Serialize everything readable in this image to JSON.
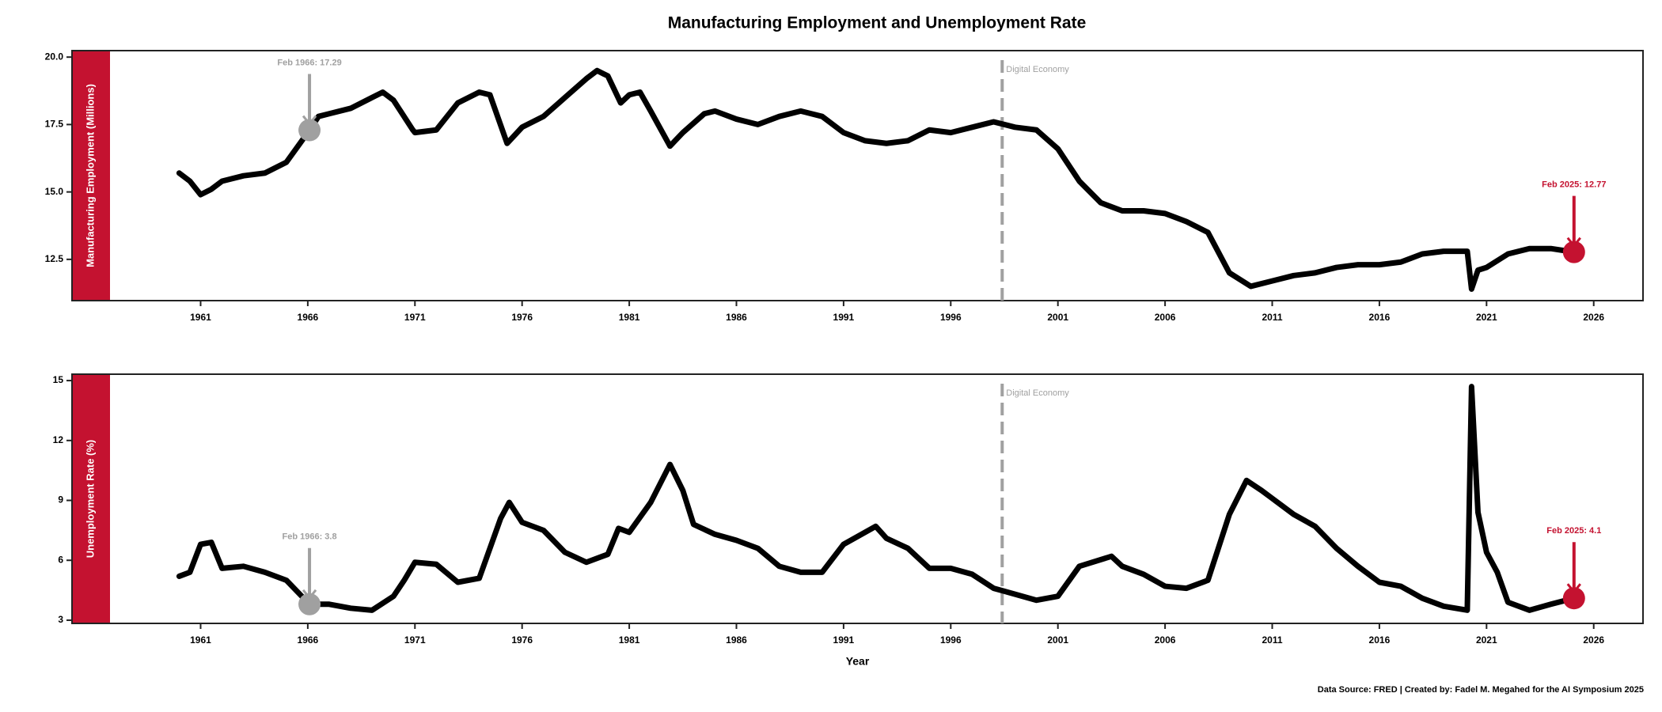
{
  "title": "Manufacturing Employment and Unemployment Rate",
  "source": "Data Source: FRED | Created by: Fadel M. Megahed for the AI Symposium 2025",
  "chart_data": [
    {
      "type": "line",
      "ylabel": "Manufacturing Employment (Millions)",
      "band_color": "#c41230",
      "xlim": [
        1955.0,
        2028.3
      ],
      "xticks": [
        1961,
        1966,
        1971,
        1976,
        1981,
        1986,
        1991,
        1996,
        2001,
        2006,
        2011,
        2016,
        2021,
        2026
      ],
      "ylim": [
        10.97,
        20.24
      ],
      "yticks": [
        12.5,
        {
          "value": 15,
          "label": "15.0"
        },
        17.5,
        {
          "value": 20,
          "label": "20.0"
        }
      ],
      "vline": {
        "x": 1998.4,
        "label": "Digital Economy",
        "color": "#a0a0a0"
      },
      "series": [
        {
          "name": "Manufacturing Employment",
          "color": "#000000",
          "x": [
            1960.0,
            1960.5,
            1961.0,
            1961.5,
            1962,
            1963,
            1964,
            1965,
            1966.08,
            1966.5,
            1967,
            1968,
            1969,
            1969.5,
            1970,
            1970.9,
            1971,
            1972,
            1973,
            1974,
            1974.5,
            1975.3,
            1976,
            1977,
            1978,
            1979,
            1979.5,
            1980,
            1980.6,
            1981,
            1981.5,
            1982,
            1982.9,
            1983.5,
            1984.5,
            1985,
            1986,
            1987,
            1988,
            1989,
            1990,
            1991,
            1992,
            1993,
            1994,
            1995,
            1996,
            1997,
            1998,
            1999,
            2000,
            2001,
            2002,
            2003,
            2004,
            2005,
            2006,
            2007,
            2008,
            2009,
            2010,
            2011,
            2012,
            2013,
            2014,
            2015,
            2016,
            2017,
            2018,
            2019,
            2020.1,
            2020.3,
            2020.6,
            2021,
            2022,
            2023,
            2024,
            2025.08
          ],
          "values": [
            15.7,
            15.4,
            14.9,
            15.1,
            15.4,
            15.6,
            15.7,
            16.1,
            17.29,
            17.8,
            17.9,
            18.1,
            18.5,
            18.7,
            18.4,
            17.3,
            17.2,
            17.3,
            18.3,
            18.7,
            18.6,
            16.8,
            17.4,
            17.8,
            18.5,
            19.2,
            19.5,
            19.3,
            18.3,
            18.6,
            18.7,
            18.0,
            16.7,
            17.2,
            17.9,
            18.0,
            17.7,
            17.5,
            17.8,
            18.0,
            17.8,
            17.2,
            16.9,
            16.8,
            16.9,
            17.3,
            17.2,
            17.4,
            17.6,
            17.4,
            17.3,
            16.6,
            15.4,
            14.6,
            14.3,
            14.3,
            14.2,
            13.9,
            13.5,
            12.0,
            11.5,
            11.7,
            11.9,
            12.0,
            12.2,
            12.3,
            12.3,
            12.4,
            12.7,
            12.8,
            12.8,
            11.4,
            12.1,
            12.2,
            12.7,
            12.9,
            12.9,
            12.77
          ]
        }
      ],
      "annotations": [
        {
          "x": 1966.08,
          "y": 17.29,
          "label": "Feb 1966: 17.29",
          "color": "#a0a0a0"
        },
        {
          "x": 2025.08,
          "y": 12.77,
          "label": "Feb 2025: 12.77",
          "color": "#c41230"
        }
      ]
    },
    {
      "type": "line",
      "ylabel": "Unemployment Rate (%)",
      "xlabel": "Year",
      "band_color": "#c41230",
      "xlim": [
        1955.0,
        2028.3
      ],
      "xticks": [
        1961,
        1966,
        1971,
        1976,
        1981,
        1986,
        1991,
        1996,
        2001,
        2006,
        2011,
        2016,
        2021,
        2026
      ],
      "ylim": [
        2.84,
        15.32
      ],
      "yticks": [
        3,
        6,
        9,
        12,
        15
      ],
      "vline": {
        "x": 1998.4,
        "label": "Digital Economy",
        "color": "#a0a0a0"
      },
      "series": [
        {
          "name": "Unemployment Rate",
          "color": "#000000",
          "x": [
            1960,
            1960.5,
            1961,
            1961.5,
            1962,
            1963,
            1964,
            1965,
            1966.08,
            1967,
            1968,
            1969,
            1970,
            1970.5,
            1971,
            1972,
            1973,
            1974,
            1975,
            1975.4,
            1976,
            1977,
            1978,
            1979,
            1980,
            1980.5,
            1981,
            1982,
            1982.9,
            1983.5,
            1984,
            1985,
            1986,
            1987,
            1988,
            1989,
            1990,
            1991,
            1992.5,
            1993,
            1994,
            1995,
            1996,
            1997,
            1998,
            1999,
            2000,
            2001,
            2002,
            2003.5,
            2004,
            2005,
            2006,
            2007,
            2008,
            2009,
            2009.8,
            2010.5,
            2011,
            2012,
            2013,
            2014,
            2015,
            2016,
            2017,
            2018,
            2019,
            2020.1,
            2020.3,
            2020.6,
            2021,
            2021.5,
            2022,
            2023,
            2024,
            2025.08
          ],
          "values": [
            5.2,
            5.4,
            6.8,
            6.9,
            5.6,
            5.7,
            5.4,
            5.0,
            3.8,
            3.8,
            3.6,
            3.5,
            4.2,
            5.0,
            5.9,
            5.8,
            4.9,
            5.1,
            8.1,
            8.9,
            7.9,
            7.5,
            6.4,
            5.9,
            6.3,
            7.6,
            7.4,
            8.9,
            10.8,
            9.5,
            7.8,
            7.3,
            7.0,
            6.6,
            5.7,
            5.4,
            5.4,
            6.8,
            7.7,
            7.1,
            6.6,
            5.6,
            5.6,
            5.3,
            4.6,
            4.3,
            4.0,
            4.2,
            5.7,
            6.2,
            5.7,
            5.3,
            4.7,
            4.6,
            5.0,
            8.3,
            10.0,
            9.5,
            9.1,
            8.3,
            7.7,
            6.6,
            5.7,
            4.9,
            4.7,
            4.1,
            3.7,
            3.5,
            14.7,
            8.4,
            6.4,
            5.4,
            3.9,
            3.5,
            3.8,
            4.1
          ]
        }
      ],
      "annotations": [
        {
          "x": 1966.08,
          "y": 3.8,
          "label": "Feb 1966: 3.8",
          "color": "#a0a0a0"
        },
        {
          "x": 2025.08,
          "y": 4.1,
          "label": "Feb 2025: 4.1",
          "color": "#c41230"
        }
      ]
    }
  ]
}
